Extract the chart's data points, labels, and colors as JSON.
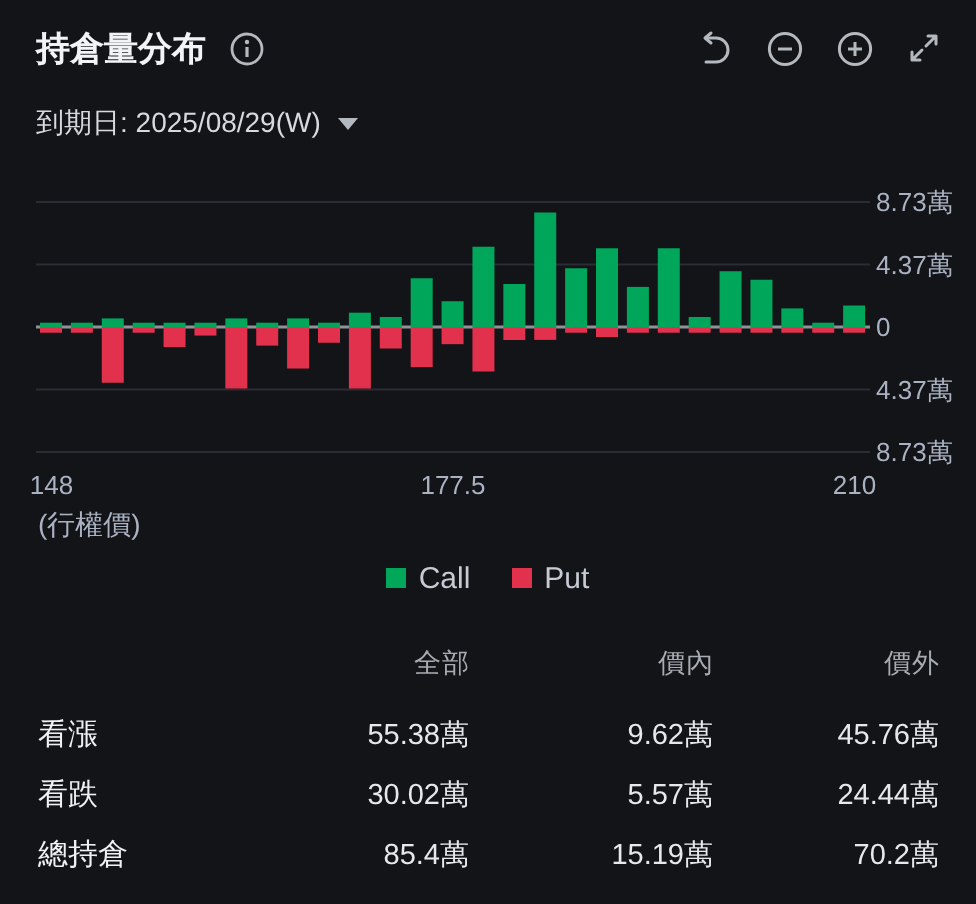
{
  "chart_data": [
    {
      "type": "bar",
      "title": "持倉量分布",
      "subtitle": "到期日: 2025/08/29(W)",
      "xlabel": "(行權價)",
      "categories": [
        "148",
        null,
        null,
        null,
        null,
        null,
        null,
        null,
        null,
        null,
        null,
        null,
        null,
        "177.5",
        null,
        null,
        null,
        null,
        null,
        null,
        null,
        null,
        null,
        null,
        null,
        null,
        "210"
      ],
      "series": [
        {
          "name": "Call",
          "color": "#00a65a",
          "values": [
            0.3,
            0.3,
            0.6,
            0.3,
            0.3,
            0.3,
            0.6,
            0.3,
            0.6,
            0.3,
            1.0,
            0.7,
            3.4,
            1.8,
            5.6,
            3.0,
            8.0,
            4.1,
            5.5,
            2.8,
            5.5,
            0.7,
            3.9,
            3.3,
            1.3,
            0.3,
            1.5
          ]
        },
        {
          "name": "Put",
          "color": "#e2314c",
          "values": [
            -0.4,
            -0.4,
            -3.9,
            -0.4,
            -1.4,
            -0.6,
            -4.3,
            -1.3,
            -2.9,
            -1.1,
            -4.3,
            -1.5,
            -2.8,
            -1.2,
            -3.1,
            -0.9,
            -0.9,
            -0.4,
            -0.7,
            -0.4,
            -0.4,
            -0.4,
            -0.4,
            -0.4,
            -0.4,
            -0.4,
            -0.4
          ]
        }
      ],
      "stacked": true,
      "ylim": [
        -8.73,
        8.73
      ],
      "yticks": [
        {
          "value": 8.73,
          "label": "8.73萬"
        },
        {
          "value": 4.37,
          "label": "4.37萬"
        },
        0,
        {
          "value": -4.37,
          "label": "4.37萬"
        },
        {
          "value": -8.73,
          "label": "8.73萬"
        }
      ],
      "grid": "y",
      "legend": "bottom"
    },
    {
      "type": "other",
      "categories": [
        "全部",
        "價內",
        "價外"
      ],
      "y_categories": [
        "看漲",
        "看跌",
        "總持倉"
      ],
      "cell_labels": [
        [
          "55.38萬",
          "9.62萬",
          "45.76萬"
        ],
        [
          "30.02萬",
          "5.57萬",
          "24.44萬"
        ],
        [
          "85.4萬",
          "15.19萬",
          "70.2萬"
        ]
      ]
    }
  ]
}
